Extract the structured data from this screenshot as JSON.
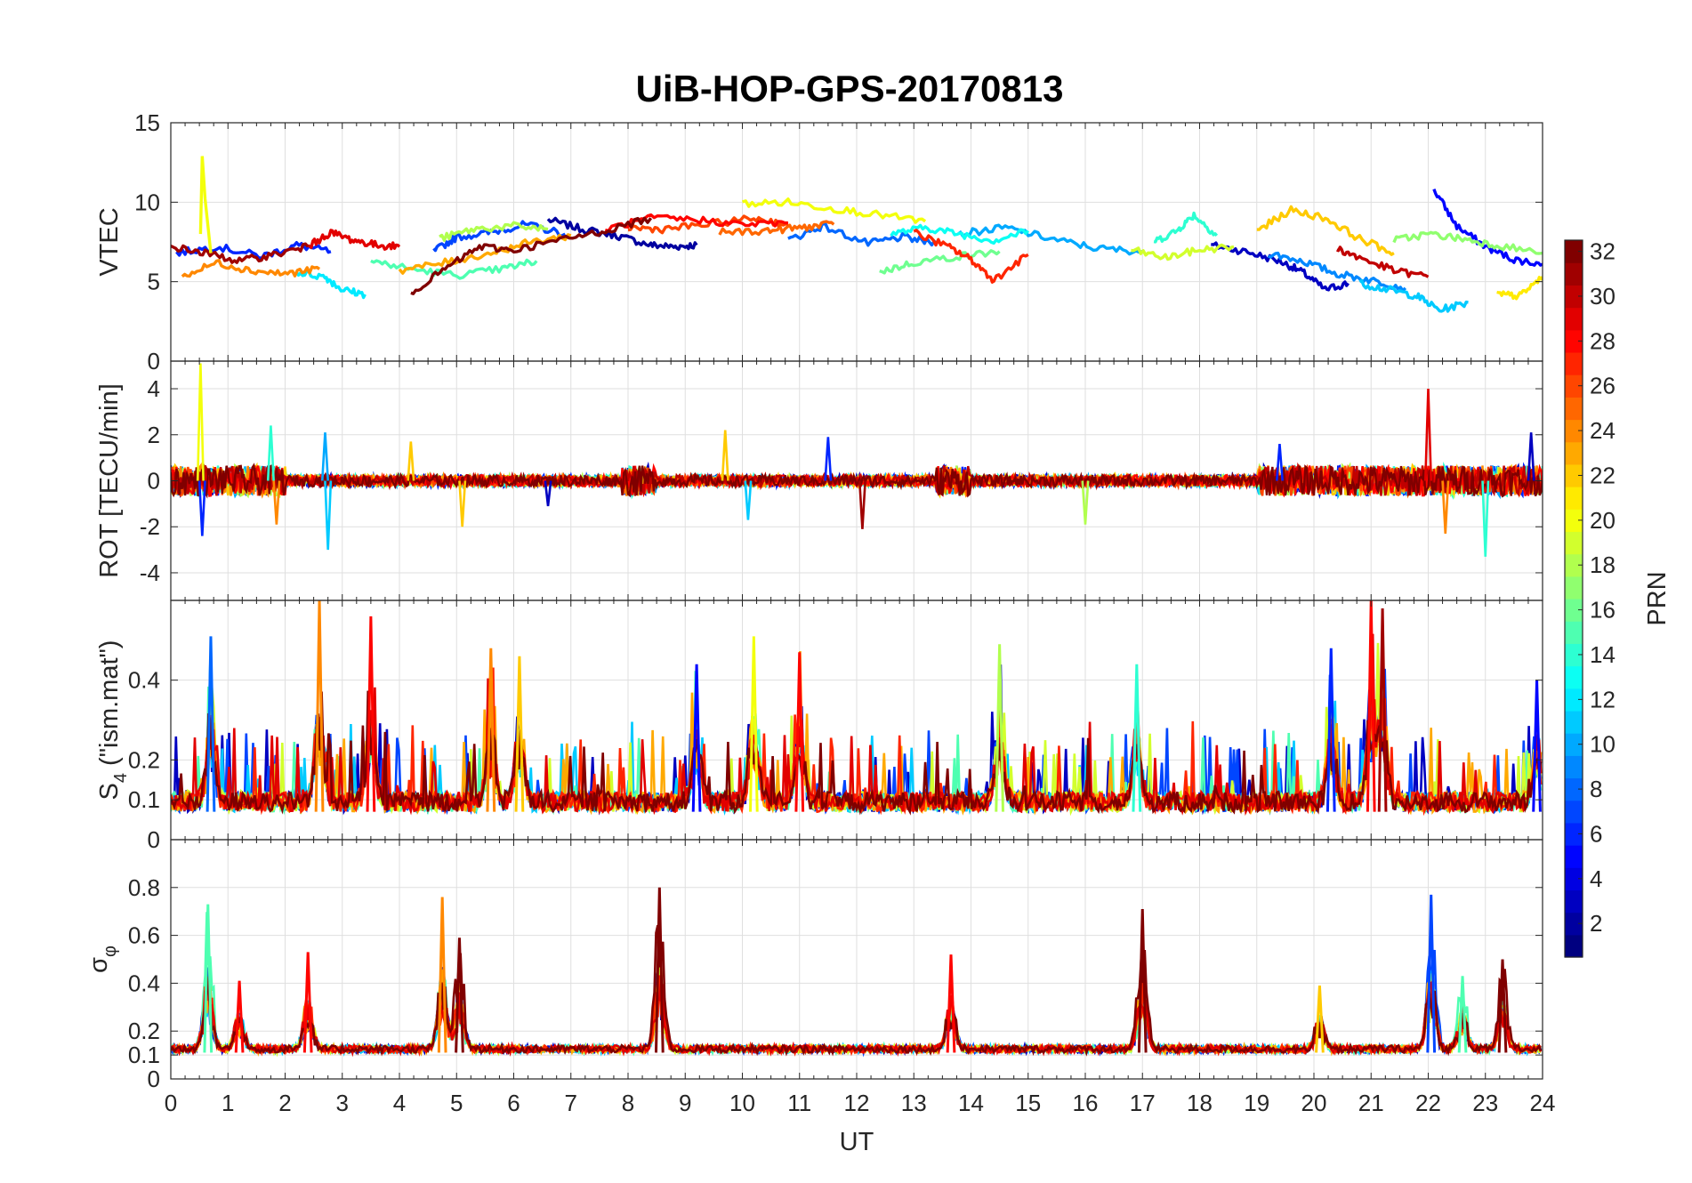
{
  "title": "UiB-HOP-GPS-20170813",
  "chart_data": [
    {
      "type": "line",
      "ylabel": "VTEC",
      "xlim": [
        0,
        24
      ],
      "ylim": [
        0,
        15
      ],
      "yticks": [
        0,
        5,
        10,
        15
      ],
      "series": [
        {
          "prn": 2,
          "x": [
            6.6,
            7.2,
            7.8,
            8.4,
            8.8,
            9.2
          ],
          "y": [
            8.9,
            8.3,
            7.9,
            7.3,
            7.2,
            7.3
          ]
        },
        {
          "prn": 3,
          "x": [
            18.2,
            18.8,
            19.4,
            19.8,
            20.2,
            20.6
          ],
          "y": [
            7.3,
            6.9,
            6.3,
            5.6,
            4.5,
            4.9
          ]
        },
        {
          "prn": 5,
          "x": [
            22.1,
            22.5,
            23.0,
            23.5,
            24.0
          ],
          "y": [
            10.8,
            8.5,
            7.2,
            6.4,
            6.1
          ]
        },
        {
          "prn": 6,
          "x": [
            0.1,
            0.8,
            1.6,
            2.2,
            2.8
          ],
          "y": [
            6.8,
            7.2,
            6.6,
            7.3,
            6.9
          ]
        },
        {
          "prn": 7,
          "x": [
            4.6,
            5.0,
            5.6,
            6.2,
            6.9
          ],
          "y": [
            6.9,
            7.8,
            8.1,
            8.6,
            8.0
          ]
        },
        {
          "prn": 8,
          "x": [
            10.8,
            11.4,
            12.2,
            12.8,
            13.4
          ],
          "y": [
            7.6,
            8.5,
            7.4,
            7.8,
            7.4
          ]
        },
        {
          "prn": 9,
          "x": [
            19.2,
            19.8,
            20.4,
            21.0,
            21.6
          ],
          "y": [
            6.8,
            6.3,
            5.5,
            5.1,
            4.6
          ]
        },
        {
          "prn": 10,
          "x": [
            13.8,
            14.6,
            15.4,
            16.2,
            17.0
          ],
          "y": [
            8.0,
            8.4,
            7.7,
            7.1,
            6.9
          ]
        },
        {
          "prn": 11,
          "x": [
            20.8,
            21.3,
            21.8,
            22.2,
            22.7
          ],
          "y": [
            4.9,
            4.5,
            4.1,
            3.2,
            3.7
          ]
        },
        {
          "prn": 12,
          "x": [
            2.2,
            2.7,
            3.0,
            3.4
          ],
          "y": [
            5.6,
            5.3,
            4.5,
            4.2
          ]
        },
        {
          "prn": 13,
          "x": [
            12.6,
            13.2,
            13.8,
            14.4,
            15.0
          ],
          "y": [
            8.0,
            8.4,
            8.0,
            7.6,
            8.2
          ]
        },
        {
          "prn": 14,
          "x": [
            17.2,
            17.6,
            17.9,
            18.3
          ],
          "y": [
            7.5,
            8.2,
            9.2,
            7.9
          ]
        },
        {
          "prn": 15,
          "x": [
            3.5,
            4.2,
            5.0,
            5.8,
            6.4
          ],
          "y": [
            6.3,
            5.8,
            5.4,
            5.8,
            6.3
          ]
        },
        {
          "prn": 16,
          "x": [
            12.4,
            13.0,
            13.8,
            14.5
          ],
          "y": [
            5.6,
            6.2,
            6.6,
            6.9
          ]
        },
        {
          "prn": 17,
          "x": [
            21.4,
            22.0,
            22.6,
            23.2,
            24.0
          ],
          "y": [
            7.6,
            8.0,
            7.7,
            7.3,
            6.8
          ]
        },
        {
          "prn": 18,
          "x": [
            4.7,
            5.3,
            6.0,
            6.6
          ],
          "y": [
            7.7,
            8.3,
            8.5,
            8.3
          ]
        },
        {
          "prn": 19,
          "x": [
            16.8,
            17.4,
            18.0,
            18.6
          ],
          "y": [
            7.0,
            6.5,
            7.0,
            7.2
          ]
        },
        {
          "prn": 20,
          "x": [
            10.0,
            10.8,
            11.6,
            12.4,
            13.2
          ],
          "y": [
            9.9,
            10.0,
            9.6,
            9.2,
            8.8
          ]
        },
        {
          "prn": 21,
          "x": [
            23.2,
            23.6,
            24.0
          ],
          "y": [
            4.2,
            4.1,
            5.3
          ]
        },
        {
          "prn": 22,
          "x": [
            19.0,
            19.6,
            20.2,
            20.8,
            21.4
          ],
          "y": [
            8.2,
            9.5,
            9.0,
            7.7,
            6.8
          ]
        },
        {
          "prn": 23,
          "x": [
            4.0,
            4.8,
            5.6,
            6.3,
            7.0
          ],
          "y": [
            5.7,
            6.2,
            6.8,
            7.5,
            7.9
          ]
        },
        {
          "prn": 24,
          "x": [
            0.2,
            0.8,
            1.4,
            2.0,
            2.6
          ],
          "y": [
            5.3,
            6.2,
            5.7,
            5.5,
            5.8
          ]
        },
        {
          "prn": 25,
          "x": [
            9.6,
            10.4,
            11.0,
            11.6
          ],
          "y": [
            8.1,
            8.2,
            8.4,
            8.6
          ]
        },
        {
          "prn": 26,
          "x": [
            8.0,
            8.6,
            9.4,
            10.2,
            10.8
          ],
          "y": [
            8.4,
            8.3,
            8.6,
            9.0,
            8.6
          ]
        },
        {
          "prn": 27,
          "x": [
            13.0,
            13.6,
            14.0,
            14.4,
            15.0
          ],
          "y": [
            8.1,
            7.2,
            6.4,
            5.1,
            6.7
          ]
        },
        {
          "prn": 28,
          "x": [
            7.6,
            8.4,
            9.2,
            10.0,
            10.8
          ],
          "y": [
            8.3,
            9.0,
            8.9,
            8.6,
            8.7
          ]
        },
        {
          "prn": 29,
          "x": [
            2.4,
            2.8,
            3.2,
            3.6,
            4.0
          ],
          "y": [
            7.2,
            8.1,
            7.6,
            7.3,
            7.2
          ]
        },
        {
          "prn": 30,
          "x": [
            20.4,
            20.8,
            21.4,
            22.0
          ],
          "y": [
            7.1,
            6.5,
            5.7,
            5.3
          ]
        },
        {
          "prn": 31,
          "x": [
            0.0,
            0.6,
            1.2,
            1.8,
            2.4
          ],
          "y": [
            7.2,
            6.8,
            6.3,
            6.7,
            7.2
          ]
        },
        {
          "prn": 32,
          "x": [
            4.2,
            4.8,
            5.4,
            6.0,
            6.8,
            7.6,
            8.4
          ],
          "y": [
            4.3,
            5.8,
            7.2,
            7.0,
            7.6,
            8.2,
            9.0
          ]
        }
      ]
    },
    {
      "type": "line",
      "ylabel": "ROT [TECU/min]",
      "xlim": [
        0,
        24
      ],
      "ylim": [
        -5.2,
        5.2
      ],
      "yticks": [
        -4,
        -2,
        0,
        2,
        4
      ],
      "spikes": [
        {
          "x": 0.52,
          "y": 5.1,
          "prn": 20
        },
        {
          "x": 0.55,
          "y": -2.4,
          "prn": 6
        },
        {
          "x": 1.75,
          "y": 2.4,
          "prn": 14
        },
        {
          "x": 1.85,
          "y": -1.9,
          "prn": 24
        },
        {
          "x": 2.75,
          "y": -3.0,
          "prn": 11
        },
        {
          "x": 2.7,
          "y": 2.1,
          "prn": 10
        },
        {
          "x": 4.2,
          "y": 1.7,
          "prn": 22
        },
        {
          "x": 5.1,
          "y": -2.0,
          "prn": 22
        },
        {
          "x": 6.6,
          "y": -1.1,
          "prn": 3
        },
        {
          "x": 9.7,
          "y": 2.2,
          "prn": 22
        },
        {
          "x": 10.1,
          "y": -1.7,
          "prn": 11
        },
        {
          "x": 11.5,
          "y": 1.9,
          "prn": 6
        },
        {
          "x": 12.1,
          "y": -2.1,
          "prn": 31
        },
        {
          "x": 16.0,
          "y": -1.9,
          "prn": 18
        },
        {
          "x": 19.4,
          "y": 1.6,
          "prn": 6
        },
        {
          "x": 22.0,
          "y": 4.0,
          "prn": 29
        },
        {
          "x": 22.3,
          "y": -2.3,
          "prn": 24
        },
        {
          "x": 23.0,
          "y": -3.3,
          "prn": 14
        },
        {
          "x": 23.8,
          "y": 2.1,
          "prn": 3
        }
      ],
      "noise_level": 0.35
    },
    {
      "type": "line",
      "ylabel": "S_4 (\"ism.mat\")",
      "ylabel_main": "S",
      "ylabel_sub": "4",
      "ylabel_rest": " (\"ism.mat\")",
      "xlim": [
        0,
        24
      ],
      "ylim": [
        0,
        0.6
      ],
      "yticks": [
        0,
        0.1,
        0.2,
        0.4
      ],
      "ytick_labels": [
        "0",
        "0.1",
        "0.2",
        "0.4"
      ],
      "peaks": [
        {
          "x": 0.7,
          "y": 0.51,
          "prn": 8
        },
        {
          "x": 2.6,
          "y": 0.6,
          "prn": 24
        },
        {
          "x": 3.5,
          "y": 0.56,
          "prn": 28
        },
        {
          "x": 5.6,
          "y": 0.48,
          "prn": 24
        },
        {
          "x": 6.1,
          "y": 0.46,
          "prn": 22
        },
        {
          "x": 9.2,
          "y": 0.44,
          "prn": 5
        },
        {
          "x": 10.2,
          "y": 0.51,
          "prn": 20
        },
        {
          "x": 11.0,
          "y": 0.47,
          "prn": 28
        },
        {
          "x": 14.5,
          "y": 0.49,
          "prn": 18
        },
        {
          "x": 16.9,
          "y": 0.44,
          "prn": 14
        },
        {
          "x": 20.3,
          "y": 0.48,
          "prn": 6
        },
        {
          "x": 21.0,
          "y": 0.6,
          "prn": 28
        },
        {
          "x": 21.2,
          "y": 0.58,
          "prn": 31
        },
        {
          "x": 23.9,
          "y": 0.4,
          "prn": 5
        }
      ],
      "baseline": 0.07
    },
    {
      "type": "line",
      "ylabel": "σ_φ",
      "ylabel_main": "σ",
      "ylabel_sub": "φ",
      "xlabel": "UT",
      "xlim": [
        0,
        24
      ],
      "ylim": [
        0,
        1
      ],
      "yticks": [
        0,
        0.1,
        0.2,
        0.4,
        0.6,
        0.8
      ],
      "ytick_labels": [
        "0",
        "0.1",
        "0.2",
        "0.4",
        "0.6",
        "0.8"
      ],
      "xticks": [
        0,
        1,
        2,
        3,
        4,
        5,
        6,
        7,
        8,
        9,
        10,
        11,
        12,
        13,
        14,
        15,
        16,
        17,
        18,
        19,
        20,
        21,
        22,
        23,
        24
      ],
      "peaks": [
        {
          "x": 0.65,
          "y": 0.73,
          "prn": 15
        },
        {
          "x": 1.2,
          "y": 0.41,
          "prn": 28
        },
        {
          "x": 2.4,
          "y": 0.53,
          "prn": 28
        },
        {
          "x": 4.75,
          "y": 0.76,
          "prn": 24
        },
        {
          "x": 5.05,
          "y": 0.59,
          "prn": 32
        },
        {
          "x": 8.55,
          "y": 0.8,
          "prn": 32
        },
        {
          "x": 13.65,
          "y": 0.52,
          "prn": 28
        },
        {
          "x": 17.0,
          "y": 0.71,
          "prn": 32
        },
        {
          "x": 20.1,
          "y": 0.39,
          "prn": 22
        },
        {
          "x": 22.05,
          "y": 0.77,
          "prn": 7
        },
        {
          "x": 22.6,
          "y": 0.43,
          "prn": 15
        },
        {
          "x": 23.3,
          "y": 0.5,
          "prn": 32
        }
      ],
      "baseline": 0.11
    }
  ],
  "colorbar": {
    "label": "PRN",
    "min": 1,
    "max": 32,
    "ticks": [
      2,
      4,
      6,
      8,
      10,
      12,
      14,
      16,
      18,
      20,
      22,
      24,
      26,
      28,
      30,
      32
    ],
    "colormap": "jet"
  }
}
